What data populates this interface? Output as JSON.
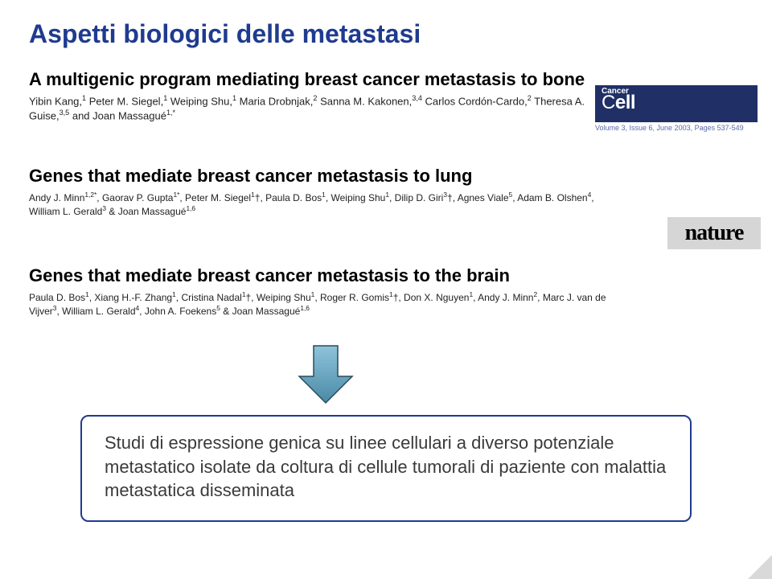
{
  "slide": {
    "title": "Aspetti biologici delle metastasi",
    "title_color": "#1f3b8f",
    "title_fontsize": 32
  },
  "papers": {
    "bone": {
      "title": "A multigenic program mediating breast cancer metastasis to bone",
      "title_fontsize": 22,
      "authors_html": "Yibin Kang,<sup>1</sup> Peter M. Siegel,<sup>1</sup> Weiping Shu,<sup>1</sup> Maria Drobnjak,<sup>2</sup> Sanna M. Kakonen,<sup>3,4</sup> Carlos Cordón-Cardo,<sup>2</sup> Theresa A. Guise,<sup>3,5</sup> and Joan Massagué<sup>1,*</sup>",
      "authors_fontsize": 13
    },
    "lung": {
      "title": "Genes that mediate breast cancer metastasis to lung",
      "title_fontsize": 22,
      "authors_html": "Andy J. Minn<sup>1,2*</sup>, Gaorav P. Gupta<sup>1*</sup>, Peter M. Siegel<sup>1</sup>†, Paula D. Bos<sup>1</sup>, Weiping Shu<sup>1</sup>, Dilip D. Giri<sup>3</sup>†, Agnes Viale<sup>5</sup>, Adam B. Olshen<sup>4</sup>, William L. Gerald<sup>3</sup> & Joan Massagué<sup>1,6</sup>",
      "authors_fontsize": 12
    },
    "brain": {
      "title": "Genes that mediate breast cancer metastasis to the brain",
      "title_fontsize": 22,
      "authors_html": "Paula D. Bos<sup>1</sup>, Xiang H.-F. Zhang<sup>1</sup>, Cristina Nadal<sup>1</sup>†, Weiping Shu<sup>1</sup>, Roger R. Gomis<sup>1</sup>†, Don X. Nguyen<sup>1</sup>, Andy J. Minn<sup>2</sup>, Marc J. van de Vijver<sup>3</sup>, William L. Gerald<sup>4</sup>, John A. Foekens<sup>5</sup> & Joan Massagué<sup>1,6</sup>",
      "authors_fontsize": 12
    }
  },
  "journals": {
    "cancer_cell": {
      "top_label": "Cancer",
      "main_label": "Cell",
      "citation": "Volume 3, Issue 6, June 2003, Pages 537-549",
      "bg_color": "#203067",
      "text_color": "#ffffff"
    },
    "nature": {
      "label": "nature",
      "bg_color": "#d6d6d6",
      "text_color": "#000000"
    }
  },
  "arrow": {
    "fill": "#66a7c5",
    "stroke": "#2a4a5a",
    "width": 70,
    "height": 75
  },
  "summary": {
    "text": "Studi di espressione genica su linee cellulari a diverso potenziale metastatico isolate da coltura di cellule tumorali di paziente con malattia metastatica disseminata",
    "fontsize": 22,
    "border_color": "#1f3b8f"
  }
}
